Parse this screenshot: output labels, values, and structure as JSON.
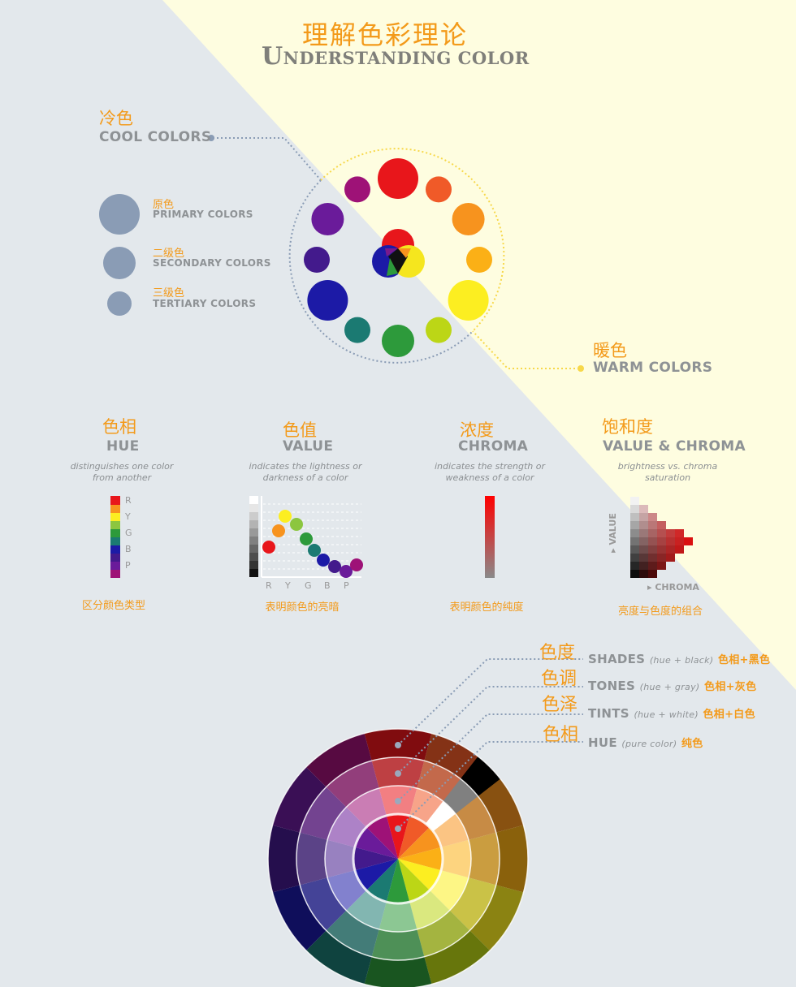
{
  "title": {
    "zh": "理解色彩理论",
    "en_initial": "U",
    "en_rest": "NDERSTANDING COLOR"
  },
  "cool": {
    "zh": "冷色",
    "en": "COOL COLORS"
  },
  "warm": {
    "zh": "暖色",
    "en": "WARM COLORS"
  },
  "legend": [
    {
      "zh": "原色",
      "en": "PRIMARY COLORS"
    },
    {
      "zh": "二级色",
      "en": "SECONDARY COLORS"
    },
    {
      "zh": "三级色",
      "en": "TERTIARY COLORS"
    }
  ],
  "properties": {
    "hue": {
      "zh": "色相",
      "en": "HUE",
      "desc_line1": "distinguishes one color",
      "desc_line2": "from another",
      "foot": "区分颜色类型",
      "scale": [
        "R",
        "Y",
        "G",
        "B",
        "P"
      ]
    },
    "value": {
      "zh": "色值",
      "en": "VALUE",
      "desc_line1": "indicates the lightness or",
      "desc_line2": "darkness of a color",
      "foot": "表明颜色的亮暗",
      "axis": [
        "R",
        "Y",
        "G",
        "B",
        "P"
      ]
    },
    "chroma": {
      "zh": "浓度",
      "en": "CHROMA",
      "desc_line1": "indicates the strength or",
      "desc_line2": "weakness of a color",
      "foot": "表明颜色的纯度"
    },
    "value_chroma": {
      "zh": "饱和度",
      "en": "VALUE & CHROMA",
      "desc_line1": "brightness vs. chroma",
      "desc_line2": "saturation",
      "foot": "亮度与色度的组合",
      "y_axis": "▸ VALUE",
      "x_axis": "▸ CHROMA"
    }
  },
  "layers": [
    {
      "zh": "色度",
      "en": "SHADES",
      "sub": "(hue + black)",
      "zh_small": "色相+黑色"
    },
    {
      "zh": "色调",
      "en": "TONES",
      "sub": "(hue + gray)",
      "zh_small": "色相+灰色"
    },
    {
      "zh": "色泽",
      "en": "TINTS",
      "sub": "(hue + white)",
      "zh_small": "色相+白色"
    },
    {
      "zh": "色相",
      "en": "HUE",
      "sub": "(pure color)",
      "zh_small": "纯色"
    }
  ],
  "colors": {
    "background": "#e3e8ec",
    "warm_background": "#fefde0",
    "accent": "#f39a1a",
    "text_gray": "#8e9295",
    "legend_dot": "#8a9cb5",
    "wheel": [
      "#e8161b",
      "#f05a28",
      "#f7931e",
      "#fbb016",
      "#fcee21",
      "#bcd616",
      "#2d9a3b",
      "#1b7a72",
      "#1c1aa6",
      "#431a8c",
      "#6a1b9a",
      "#9e1277"
    ]
  }
}
